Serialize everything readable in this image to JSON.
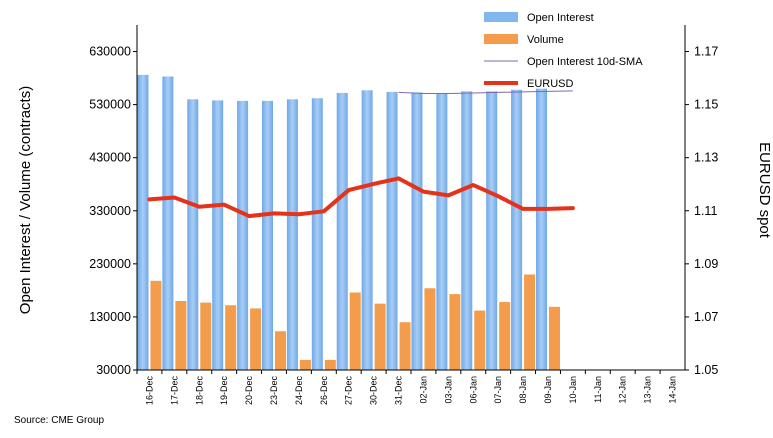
{
  "chart_data": {
    "type": "bar",
    "categories": [
      "16-Dec",
      "17-Dec",
      "18-Dec",
      "19-Dec",
      "20-Dec",
      "23-Dec",
      "24-Dec",
      "26-Dec",
      "27-Dec",
      "30-Dec",
      "31-Dec",
      "02-Jan",
      "03-Jan",
      "06-Jan",
      "07-Jan",
      "08-Jan",
      "09-Jan",
      "10-Jan",
      "11-Jan",
      "12-Jan",
      "13-Jan",
      "14-Jan"
    ],
    "series": [
      {
        "name": "Open Interest",
        "kind": "bar",
        "axis": "left",
        "color": "#82b6ee",
        "values": [
          586000,
          583000,
          540000,
          538000,
          537000,
          537000,
          540000,
          542000,
          552000,
          557000,
          554000,
          553000,
          551000,
          555000,
          555000,
          558000,
          560000,
          null,
          null,
          null,
          null,
          null
        ]
      },
      {
        "name": "Volume",
        "kind": "bar",
        "axis": "left",
        "color": "#f39c4c",
        "values": [
          198000,
          160000,
          157000,
          152000,
          146000,
          103000,
          49000,
          49000,
          176000,
          155000,
          120000,
          184000,
          173000,
          142000,
          158000,
          210000,
          149000,
          null,
          null,
          null,
          null,
          null
        ]
      },
      {
        "name": "Open Interest 10d-SMA",
        "kind": "line",
        "axis": "left",
        "color": "#7b6bb0",
        "values": [
          null,
          null,
          null,
          null,
          null,
          null,
          null,
          null,
          null,
          null,
          553000,
          551000,
          551000,
          552000,
          553000,
          554000,
          555000,
          556000,
          null,
          null,
          null,
          null
        ]
      },
      {
        "name": "EURUSD",
        "kind": "line",
        "axis": "right",
        "color": "#e5321a",
        "values": [
          1.1143,
          1.115,
          1.1115,
          1.1123,
          1.108,
          1.109,
          1.1087,
          1.1098,
          1.1178,
          1.1201,
          1.1222,
          1.1172,
          1.1158,
          1.1197,
          1.1155,
          1.1107,
          1.1107,
          1.111,
          null,
          null,
          null,
          null
        ]
      }
    ],
    "ylabel": "Open Interest / Volume (contracts)",
    "y2label": "EURUSD spot",
    "ylim": [
      30000,
      680000
    ],
    "yticks": [
      "30000",
      "130000",
      "230000",
      "330000",
      "430000",
      "530000",
      "630000"
    ],
    "y2lim": [
      1.05,
      1.18
    ],
    "y2ticks": [
      "1.05",
      "1.07",
      "1.09",
      "1.11",
      "1.13",
      "1.15",
      "1.17"
    ],
    "legend": "top-right",
    "grid": false,
    "source": "Source: CME Group"
  }
}
